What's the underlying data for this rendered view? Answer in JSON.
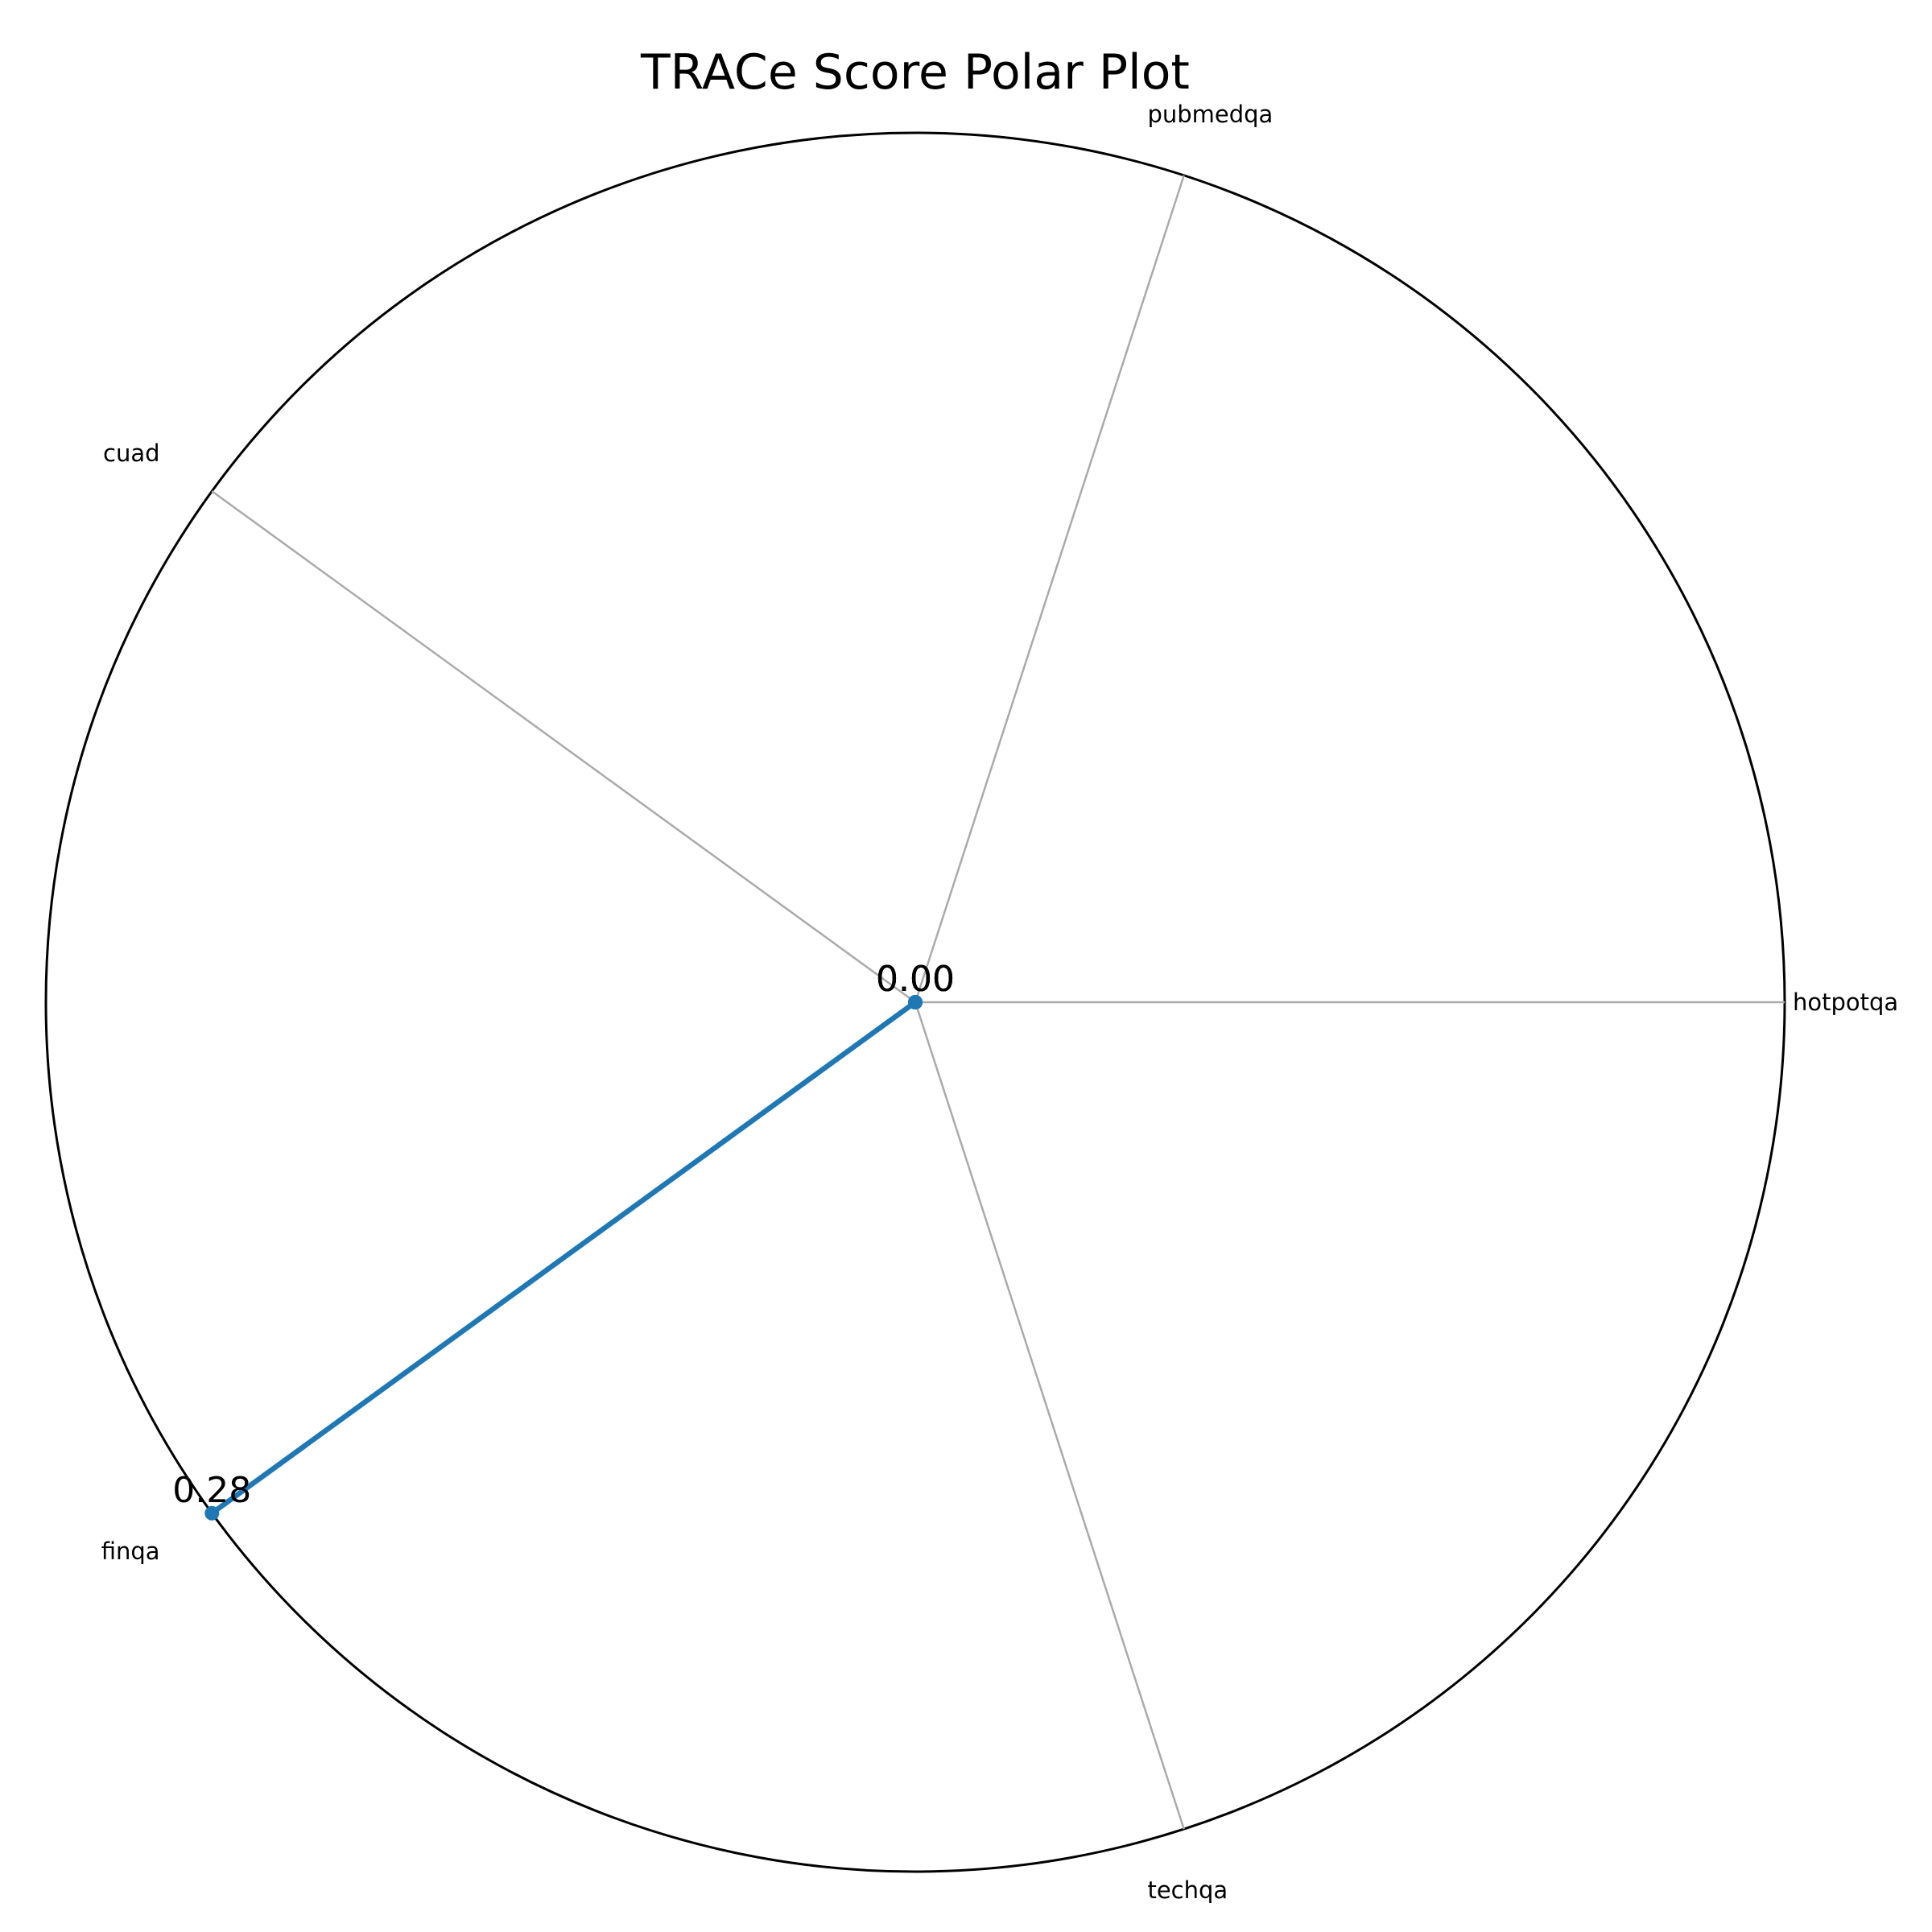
{
  "chart_data": {
    "type": "radar",
    "title": "TRACe Score Polar Plot",
    "categories": [
      "hotpotqa",
      "pubmedqa",
      "cuad",
      "finqa",
      "techqa"
    ],
    "series": [
      {
        "values": [
          0.0,
          0.0,
          0.0,
          0.28,
          0.0
        ],
        "color": "#1f77b4"
      }
    ],
    "data_labels": [
      {
        "category": "hotpotqa",
        "text": "0.00"
      },
      {
        "category": "pubmedqa",
        "text": "0.00"
      },
      {
        "category": "cuad",
        "text": "0.00"
      },
      {
        "category": "finqa",
        "text": "0.28"
      },
      {
        "category": "techqa",
        "text": "0.00"
      }
    ],
    "rlim": [
      0,
      0.28
    ],
    "grid": true,
    "radial_tick_labels": false
  }
}
